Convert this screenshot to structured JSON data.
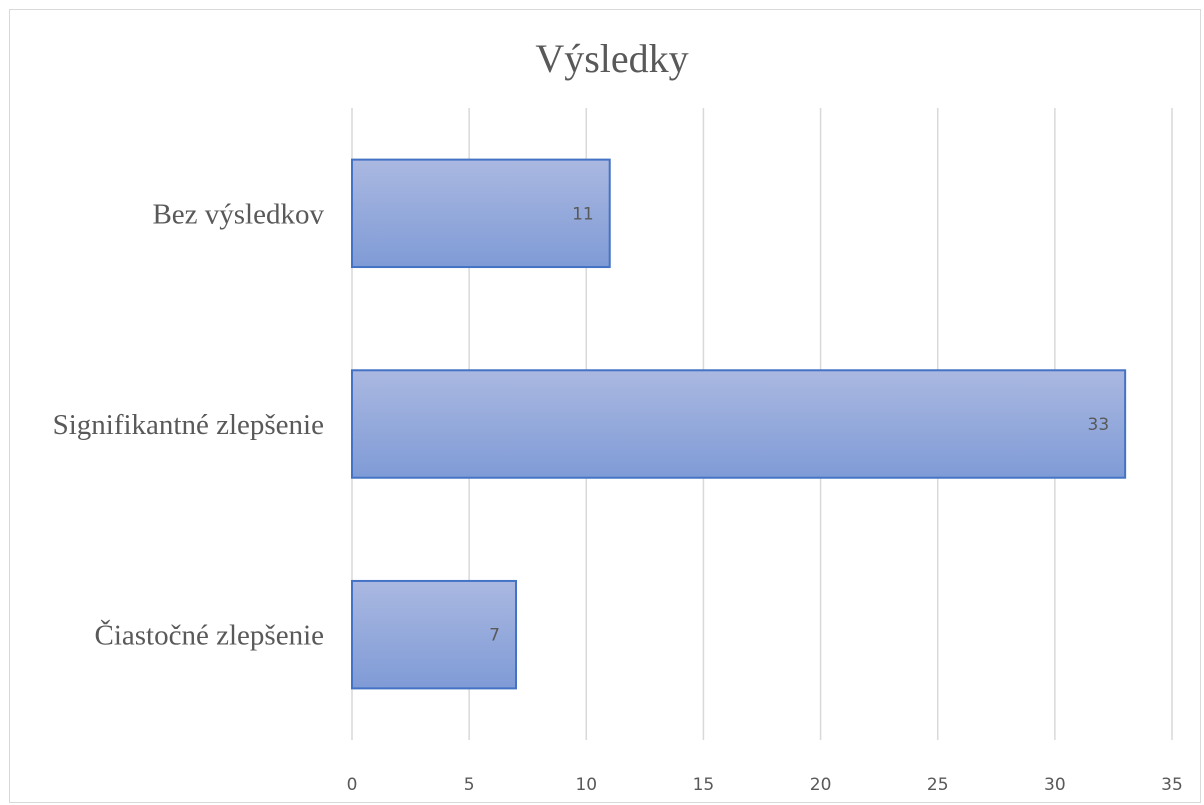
{
  "chart_data": {
    "type": "bar",
    "orientation": "horizontal",
    "title": "Výsledky",
    "categories": [
      "Bez výsledkov",
      "Signifikantné zlepšenie",
      "Čiastočné zlepšenie"
    ],
    "values": [
      11,
      33,
      7
    ],
    "xlim": [
      0,
      35
    ],
    "xticks": [
      "0",
      "5",
      "10",
      "15",
      "20",
      "25",
      "30",
      "35"
    ],
    "grid": true,
    "data_labels": true,
    "legend": "none",
    "colors": {
      "bar_fill_top": "#aab8e1",
      "bar_fill_bottom": "#7f9bd6",
      "bar_stroke": "#4472c4",
      "text": "#595959",
      "grid": "#d9d9d9"
    }
  }
}
